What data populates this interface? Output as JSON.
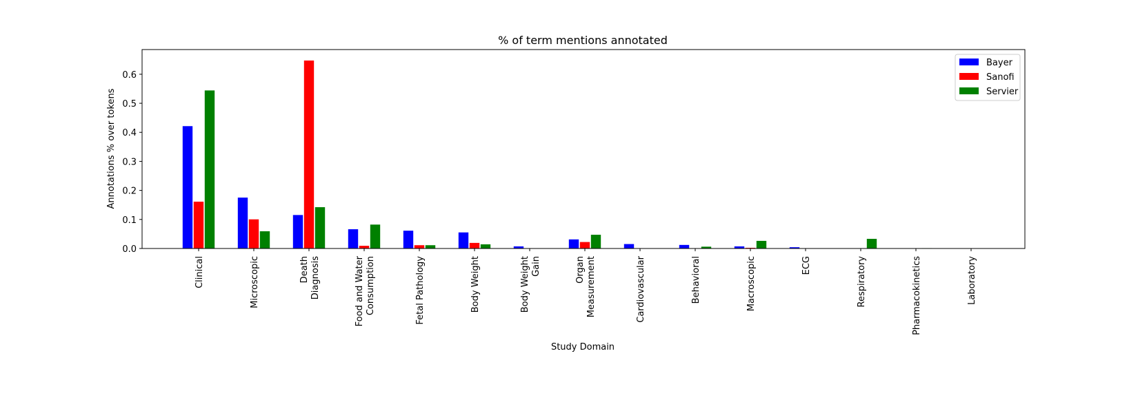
{
  "chart_data": {
    "type": "bar",
    "title": "%  of term mentions annotated",
    "xlabel": "Study Domain",
    "ylabel": "Annotations % over tokens",
    "ylim": [
      0,
      0.685
    ],
    "yticks": [
      "0.0",
      "0.1",
      "0.2",
      "0.3",
      "0.4",
      "0.5",
      "0.6"
    ],
    "grid": false,
    "legend_position": "top-right",
    "categories": [
      [
        "Clinical"
      ],
      [
        "Microscopic"
      ],
      [
        "Death",
        "Diagnosis"
      ],
      [
        "Food and Water",
        "Consumption"
      ],
      [
        "Fetal Pathology"
      ],
      [
        "Body Weight"
      ],
      [
        "Body Weight",
        "Gain"
      ],
      [
        "Organ",
        "Measurement"
      ],
      [
        "Cardiovascular"
      ],
      [
        "Behavioral"
      ],
      [
        "Macroscopic"
      ],
      [
        "ECG"
      ],
      [
        "Respiratory"
      ],
      [
        "Pharmacokinetics"
      ],
      [
        "Laboratory"
      ]
    ],
    "series": [
      {
        "name": "Bayer",
        "color": "#0000ff",
        "values": [
          0.422,
          0.176,
          0.116,
          0.067,
          0.062,
          0.056,
          0.008,
          0.032,
          0.016,
          0.013,
          0.008,
          0.005,
          0.0,
          0.0,
          0.0
        ]
      },
      {
        "name": "Sanofi",
        "color": "#ff0000",
        "values": [
          0.162,
          0.101,
          0.648,
          0.01,
          0.012,
          0.02,
          0.0,
          0.023,
          0.0,
          0.0,
          0.003,
          0.0,
          0.0,
          0.0,
          0.0
        ]
      },
      {
        "name": "Servier",
        "color": "#008000",
        "values": [
          0.545,
          0.06,
          0.143,
          0.083,
          0.012,
          0.015,
          0.0,
          0.048,
          0.0,
          0.007,
          0.027,
          0.0,
          0.034,
          0.002,
          0.0
        ]
      }
    ]
  }
}
